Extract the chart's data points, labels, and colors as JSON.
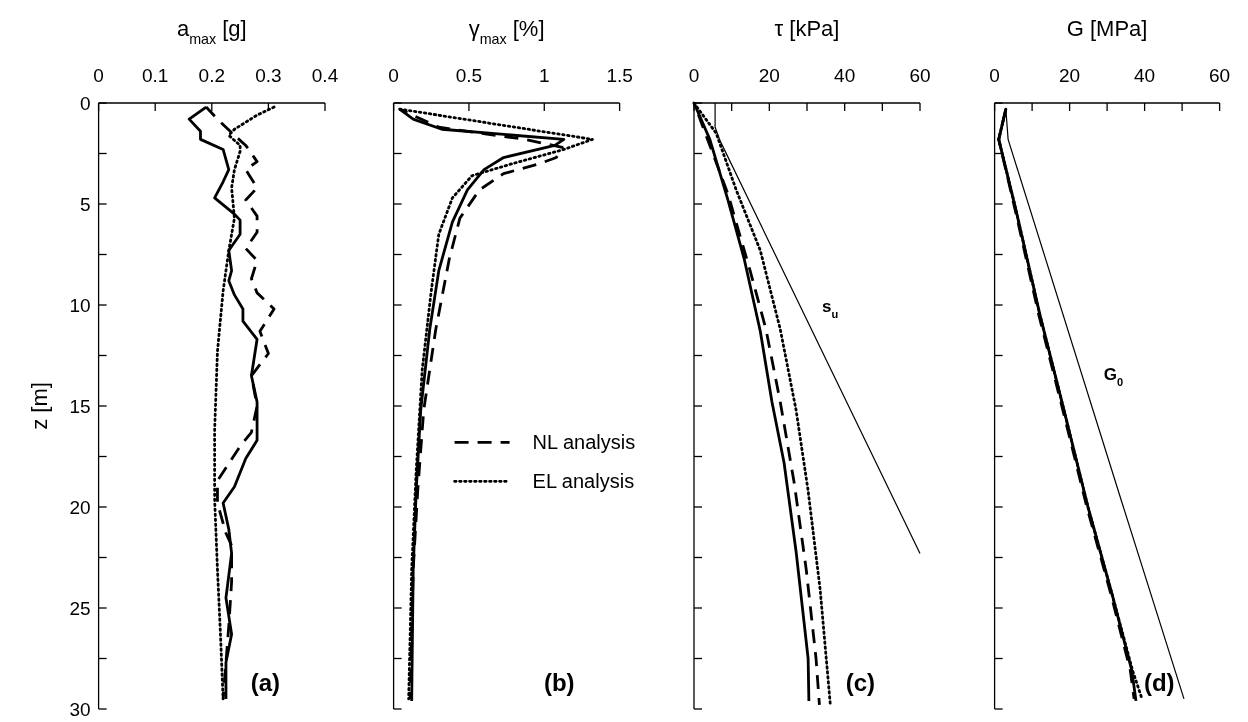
{
  "chart_data": [
    {
      "type": "line",
      "xlabel": "a$_{max}$ [g]",
      "ylabel": "z [m]",
      "xlim": [
        0,
        0.4
      ],
      "xticks": [
        0,
        0.1,
        0.2,
        0.3,
        0.4
      ],
      "ylim": [
        30,
        0
      ],
      "yticks": [
        0,
        {
          "value": 2.5,
          "label": null
        },
        5,
        {
          "value": 7.5,
          "label": null
        },
        10,
        {
          "value": 12.5,
          "label": null
        },
        15,
        {
          "value": 17.5,
          "label": null
        },
        20,
        {
          "value": 22.5,
          "label": null
        },
        25,
        {
          "value": 27.5,
          "label": null
        },
        30
      ],
      "legend": false,
      "annotations": [
        "(a)"
      ],
      "series": [
        {
          "color": "#000000",
          "line_style": "dashed",
          "x": [
            0.19,
            0.21,
            0.24,
            0.26,
            0.28,
            0.26,
            0.28,
            0.26,
            0.28,
            0.28,
            0.26,
            0.28,
            0.27,
            0.28,
            0.31,
            0.285,
            0.3,
            0.27,
            0.28,
            0.27,
            0.25,
            0.21,
            0.21,
            0.225,
            0.235,
            0.235,
            0.23,
            0.225,
            0.22
          ],
          "values": [
            0.2,
            0.8,
            1.6,
            2.1,
            2.9,
            3.3,
            4.2,
            4.8,
            5.6,
            6.4,
            7.2,
            7.8,
            8.7,
            9.4,
            10.2,
            11.3,
            12.4,
            13.5,
            15,
            16.3,
            17,
            18.7,
            19.8,
            21.3,
            21.9,
            23.7,
            25.9,
            27.7,
            29.5
          ]
        },
        {
          "color": "#000000",
          "line_style": "dotted",
          "x": [
            0.31,
            0.28,
            0.24,
            0.23,
            0.25,
            0.25,
            0.24,
            0.235,
            0.24,
            0.23,
            0.22,
            0.21,
            0.205,
            0.205,
            0.21,
            0.215,
            0.22
          ],
          "values": [
            0.2,
            0.6,
            1.3,
            1.6,
            2.1,
            2.4,
            3.3,
            4.2,
            5.7,
            7.3,
            9.3,
            12.3,
            16.2,
            19.6,
            23.1,
            26.1,
            29.5
          ]
        },
        {
          "color": "#000000",
          "line_style": "solid",
          "x": [
            0.19,
            0.16,
            0.18,
            0.18,
            0.22,
            0.23,
            0.22,
            0.205,
            0.24,
            0.25,
            0.25,
            0.23,
            0.235,
            0.23,
            0.24,
            0.255,
            0.255,
            0.28,
            0.27,
            0.28,
            0.28,
            0.26,
            0.24,
            0.22,
            0.23,
            0.235,
            0.225,
            0.235,
            0.225,
            0.225
          ],
          "values": [
            0.2,
            0.8,
            1.4,
            1.8,
            2.3,
            3.3,
            3.9,
            4.7,
            5.5,
            5.8,
            6.5,
            7.3,
            8.3,
            8.8,
            9.5,
            10.2,
            10.8,
            11.7,
            13.5,
            14.8,
            16.7,
            17.6,
            19,
            19.8,
            21.1,
            22.3,
            24.5,
            26.3,
            27.7,
            29.5
          ]
        }
      ]
    },
    {
      "type": "line",
      "xlabel": "γ$_{max}$ [%]",
      "xlim": [
        0,
        1.5
      ],
      "xticks": [
        0,
        0.5,
        1,
        1.5
      ],
      "ylim": [
        30,
        0
      ],
      "yticks": [
        0,
        {
          "value": 2.5,
          "label": null
        },
        5,
        {
          "value": 7.5,
          "label": null
        },
        10,
        {
          "value": 12.5,
          "label": null
        },
        15,
        {
          "value": 17.5,
          "label": null
        },
        20,
        {
          "value": 22.5,
          "label": null
        },
        25,
        {
          "value": 27.5,
          "label": null
        },
        30
      ],
      "tick_labels": "x",
      "legend": "bottom right",
      "annotations": [
        "(b)"
      ],
      "series": [
        {
          "name": "NL analysis",
          "color": "#000000",
          "line_style": "dashed",
          "x": [
            0.04,
            0.3,
            0.87,
            1.12,
            1.08,
            0.97,
            0.73,
            0.57,
            0.44,
            0.37,
            0.28,
            0.2,
            0.16,
            0.13,
            0.11
          ],
          "values": [
            0.3,
            1.2,
            1.8,
            2.2,
            2.7,
            3,
            3.5,
            4.3,
            5.7,
            7.7,
            11.2,
            15.2,
            19.2,
            23.1,
            29.5
          ]
        },
        {
          "name": "EL analysis",
          "color": "#000000",
          "line_style": "dotted",
          "x": [
            0.04,
            1.32,
            1.13,
            0.79,
            0.52,
            0.39,
            0.3,
            0.25,
            0.19,
            0.15,
            0.12,
            0.1
          ],
          "values": [
            0.3,
            1.8,
            2.3,
            3,
            3.6,
            4.7,
            6.5,
            9.3,
            13.2,
            18.2,
            23.1,
            29.5
          ]
        },
        {
          "color": "#000000",
          "line_style": "solid",
          "x": [
            0.04,
            0.13,
            0.32,
            1.13,
            1.07,
            0.73,
            0.6,
            0.49,
            0.39,
            0.3,
            0.24,
            0.18,
            0.15,
            0.13,
            0.12
          ],
          "values": [
            0.3,
            0.8,
            1.3,
            1.8,
            2.1,
            2.7,
            3.3,
            4.3,
            5.9,
            8.3,
            11.2,
            15.2,
            19.2,
            23.1,
            29.6
          ]
        }
      ]
    },
    {
      "type": "line",
      "xlabel": "τ [kPa]",
      "xlim": [
        0,
        60
      ],
      "xticks": [
        0,
        {
          "value": 10,
          "label": null
        },
        20,
        {
          "value": 30,
          "label": null
        },
        40,
        {
          "value": 50,
          "label": null
        },
        60
      ],
      "ylim": [
        30,
        0
      ],
      "yticks": [
        0,
        {
          "value": 2.5,
          "label": null
        },
        5,
        {
          "value": 7.5,
          "label": null
        },
        10,
        {
          "value": 12.5,
          "label": null
        },
        15,
        {
          "value": 17.5,
          "label": null
        },
        20,
        {
          "value": 22.5,
          "label": null
        },
        25,
        {
          "value": 27.5,
          "label": null
        },
        30
      ],
      "tick_labels": "x",
      "legend": false,
      "annotations": [
        "(c)"
      ],
      "series": [
        {
          "color": "#000000",
          "line_style": "dashed",
          "x": [
            0,
            9,
            14.9,
            19.1,
            22.9,
            26.6,
            29.8,
            32.4,
            33.3
          ],
          "values": [
            0,
            4.5,
            8.3,
            11.2,
            14.8,
            18.8,
            23.1,
            27.5,
            29.8
          ]
        },
        {
          "color": "#000000",
          "line_style": "dotted",
          "x": [
            0,
            5.9,
            11.2,
            17.6,
            22.9,
            27.1,
            30.3,
            33.5,
            36.2
          ],
          "values": [
            0,
            1.5,
            4.3,
            7.3,
            11.2,
            15.2,
            19.2,
            24.1,
            29.8
          ]
        },
        {
          "color": "#000000",
          "line_style": "solid",
          "x": [
            0,
            4.2,
            9,
            13.3,
            17.6,
            20.7,
            23.9,
            27.1,
            30.3,
            30.5
          ],
          "values": [
            0,
            1.8,
            4.8,
            7.7,
            11.3,
            14.8,
            17.8,
            22.2,
            27.5,
            29.6
          ]
        },
        {
          "name": "s$_{u}$",
          "color": "#000000",
          "line_style": "solid",
          "x": [
            5.6,
            5.6,
            7,
            60
          ],
          "values": [
            0,
            1.2,
            1.9,
            22.3
          ]
        }
      ]
    },
    {
      "type": "line",
      "xlabel": "G [MPa]",
      "xlim": [
        0,
        60
      ],
      "xticks": [
        0,
        {
          "value": 10,
          "label": null
        },
        20,
        {
          "value": 30,
          "label": null
        },
        40,
        {
          "value": 50,
          "label": null
        },
        60
      ],
      "ylim": [
        30,
        0
      ],
      "yticks": [
        0,
        {
          "value": 2.5,
          "label": null
        },
        5,
        {
          "value": 7.5,
          "label": null
        },
        10,
        {
          "value": 12.5,
          "label": null
        },
        15,
        {
          "value": 17.5,
          "label": null
        },
        20,
        {
          "value": 22.5,
          "label": null
        },
        25,
        {
          "value": 27.5,
          "label": null
        },
        30
      ],
      "tick_labels": "x",
      "legend": false,
      "annotations": [
        "(d)"
      ],
      "series": [
        {
          "color": "#000000",
          "line_style": "dashed",
          "x": [
            3,
            1.1,
            5.5,
            11.8,
            18.2,
            24.6,
            31,
            36.2,
            37.2
          ],
          "values": [
            0.3,
            1.8,
            5.3,
            10.5,
            15.2,
            20,
            24.3,
            28.1,
            29.5
          ]
        },
        {
          "color": "#000000",
          "line_style": "dotted",
          "x": [
            3,
            1.1,
            5.7,
            12.1,
            18.5,
            24.9,
            31.3,
            36.8,
            39.3
          ],
          "values": [
            0.3,
            1.8,
            5.3,
            10.5,
            15.2,
            20,
            24.3,
            28.1,
            29.5
          ]
        },
        {
          "color": "#000000",
          "line_style": "solid",
          "x": [
            3,
            1.1,
            5.7,
            12.1,
            18.5,
            24.9,
            31.3,
            36.6,
            37.7
          ],
          "values": [
            0.3,
            1.8,
            5.3,
            10.5,
            15.2,
            20,
            24.3,
            28.1,
            29.6
          ]
        },
        {
          "name": "G$_{0}$",
          "color": "#000000",
          "line_style": "solid",
          "x": [
            3,
            3.6,
            34,
            50.5
          ],
          "values": [
            0.3,
            1.8,
            19.8,
            29.5
          ]
        }
      ]
    }
  ]
}
